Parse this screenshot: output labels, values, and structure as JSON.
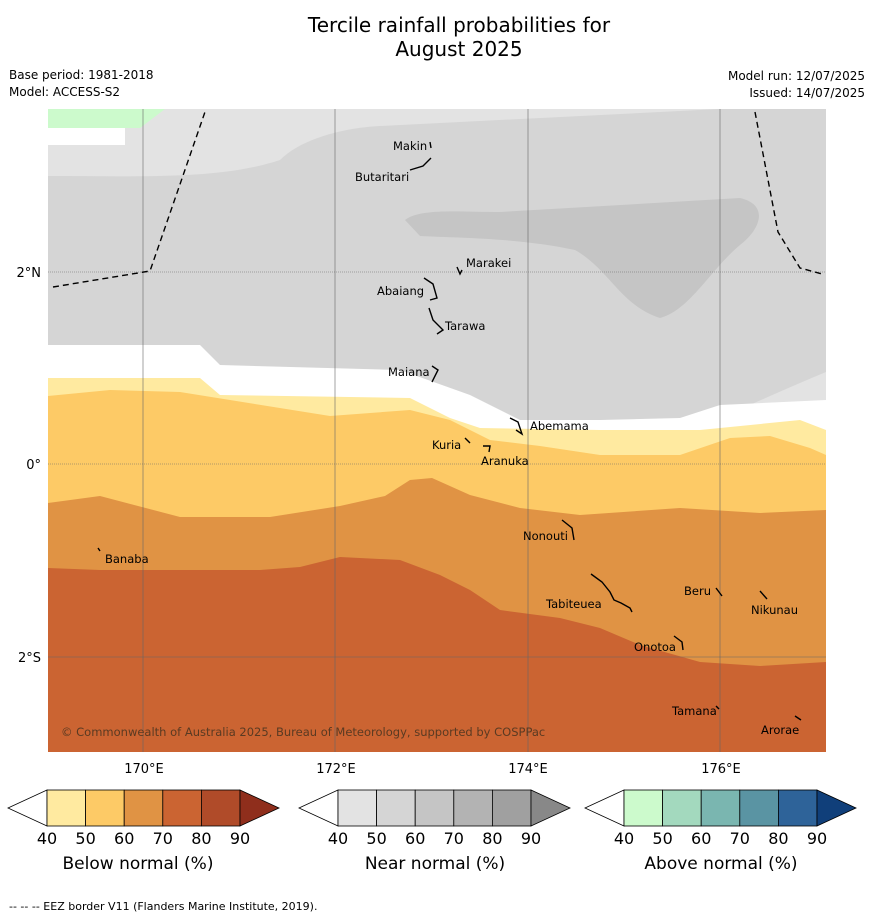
{
  "title": {
    "line1": "Tercile rainfall probabilities for",
    "line2": "August 2025"
  },
  "meta": {
    "base_period": "Base period: 1981-2018",
    "model": "Model: ACCESS-S2",
    "model_run": "Model run: 12/07/2025",
    "issued": "Issued: 14/07/2025"
  },
  "map": {
    "lat_labels": [
      "2°N",
      "0°",
      "2°S"
    ],
    "lon_labels": [
      "170°E",
      "172°E",
      "174°E",
      "176°E"
    ],
    "copyright": "© Commonwealth of Australia 2025, Bureau of Meteorology, supported by COSPPac",
    "places": [
      "Makin",
      "Butaritari",
      "Marakei",
      "Abaiang",
      "Tarawa",
      "Maiana",
      "Abemama",
      "Kuria",
      "Aranuka",
      "Nonouti",
      "Banaba",
      "Tabiteuea",
      "Beru",
      "Nikunau",
      "Onotoa",
      "Tamana",
      "Arorae"
    ]
  },
  "colorbars": {
    "below": {
      "label": "Below normal (%)",
      "ticks": [
        "40",
        "50",
        "60",
        "70",
        "80",
        "90"
      ],
      "colors": [
        "#ffffff",
        "#ffeaa0",
        "#fdca66",
        "#e09344",
        "#cb6432",
        "#b04b29",
        "#8f2e1c"
      ]
    },
    "near": {
      "label": "Near normal (%)",
      "ticks": [
        "40",
        "50",
        "60",
        "70",
        "80",
        "90"
      ],
      "colors": [
        "#ffffff",
        "#e3e3e3",
        "#d5d5d5",
        "#c5c5c5",
        "#b3b3b3",
        "#a0a0a0",
        "#888888"
      ]
    },
    "above": {
      "label": "Above normal (%)",
      "ticks": [
        "40",
        "50",
        "60",
        "70",
        "80",
        "90"
      ],
      "colors": [
        "#ffffff",
        "#ccfacc",
        "#a3d9be",
        "#7ab6b0",
        "#5a94a3",
        "#2e6399",
        "#103f7a"
      ]
    }
  },
  "footer": "--  --  -- EEZ border V11 (Flanders Marine Institute, 2019)."
}
